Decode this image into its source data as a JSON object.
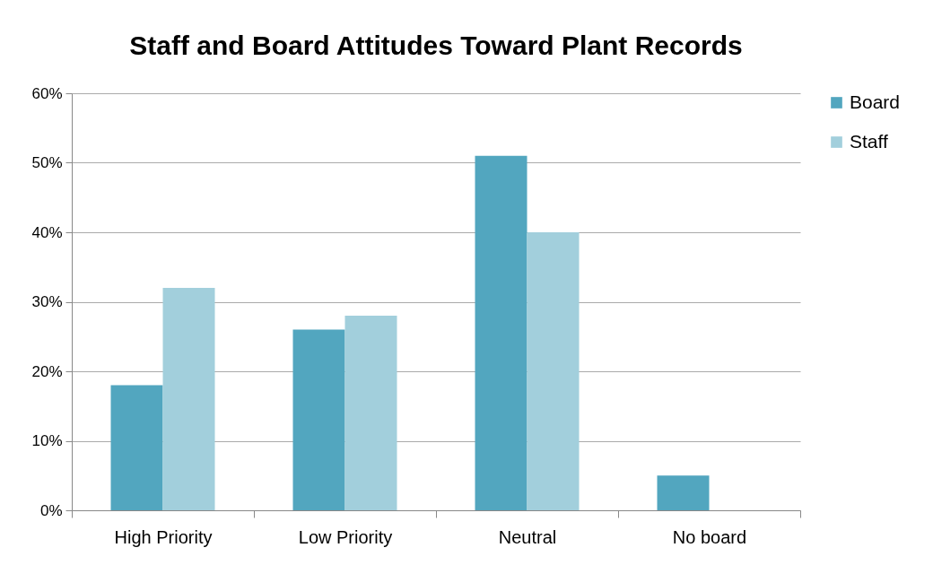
{
  "chart_data": {
    "type": "bar",
    "title": "Staff and Board Attitudes Toward Plant Records",
    "categories": [
      "High Priority",
      "Low Priority",
      "Neutral",
      "No board"
    ],
    "series": [
      {
        "name": "Board",
        "color": "#52a6bf",
        "values": [
          18,
          26,
          51,
          5
        ]
      },
      {
        "name": "Staff",
        "color": "#a2cfdc",
        "values": [
          32,
          28,
          40,
          null
        ]
      }
    ],
    "ylim": [
      0,
      60
    ],
    "yticks": [
      {
        "value": 0,
        "label": "0%"
      },
      {
        "value": 10,
        "label": "10%"
      },
      {
        "value": 20,
        "label": "20%"
      },
      {
        "value": 30,
        "label": "30%"
      },
      {
        "value": 40,
        "label": "40%"
      },
      {
        "value": 50,
        "label": "50%"
      },
      {
        "value": 60,
        "label": "60%"
      }
    ],
    "grid": "y",
    "legend": "right"
  }
}
